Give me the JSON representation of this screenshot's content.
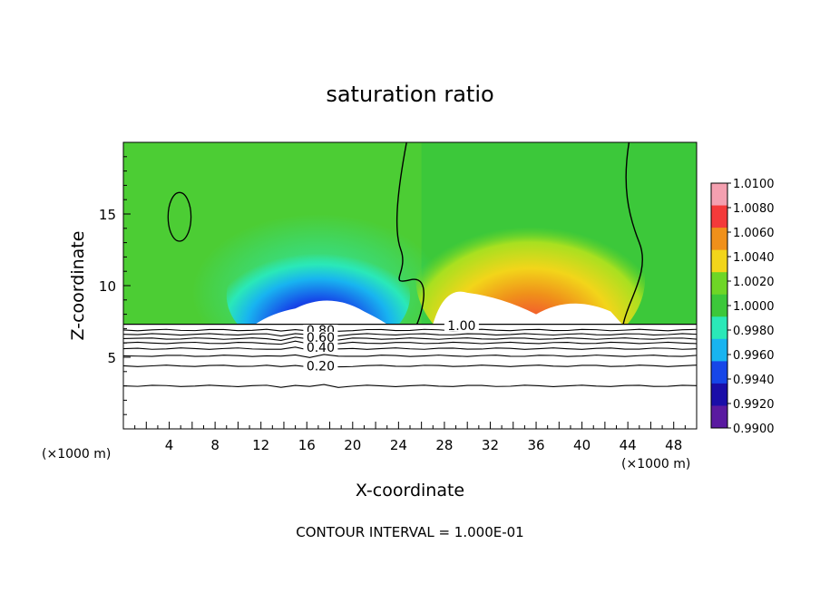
{
  "chart_data": {
    "type": "heatmap",
    "title": "saturation ratio",
    "xlabel": "X-coordinate",
    "ylabel": "Z-coordinate",
    "x_unit_label": "(×1000 m)",
    "x_unit_label_right": "(×1000 m)",
    "xlim": [
      0,
      50
    ],
    "ylim": [
      0,
      20
    ],
    "x_ticks": [
      4,
      8,
      12,
      16,
      20,
      24,
      28,
      32,
      36,
      40,
      44,
      48
    ],
    "y_ticks": [
      5,
      10,
      15
    ],
    "footer": "CONTOUR INTERVAL = 1.000E-01",
    "colorbar": {
      "labels": [
        "1.0100",
        "1.0080",
        "1.0060",
        "1.0040",
        "1.0020",
        "1.0000",
        "0.9980",
        "0.9960",
        "0.9940",
        "0.9920",
        "0.9900"
      ],
      "colors": [
        "#f4a0b0",
        "#f43a3a",
        "#f0901a",
        "#f2d51a",
        "#6ed626",
        "#3cc83a",
        "#2ae8b8",
        "#18b4f0",
        "#1646e8",
        "#1a0ea8",
        "#5a1aa0"
      ]
    },
    "fill_top_z": 7.3,
    "contour_labels": [
      {
        "text": "1.00",
        "x": 29.5,
        "z": 7.2
      },
      {
        "text": "0.80",
        "x": 17.2,
        "z": 6.9
      },
      {
        "text": "0.60",
        "x": 17.2,
        "z": 6.4
      },
      {
        "text": "0.40",
        "x": 17.2,
        "z": 5.7
      },
      {
        "text": "0.20",
        "x": 17.2,
        "z": 4.4
      }
    ],
    "contour_lines_z": [
      6.9,
      6.6,
      6.3,
      6.0,
      5.6,
      5.1,
      4.4,
      3.0
    ]
  }
}
